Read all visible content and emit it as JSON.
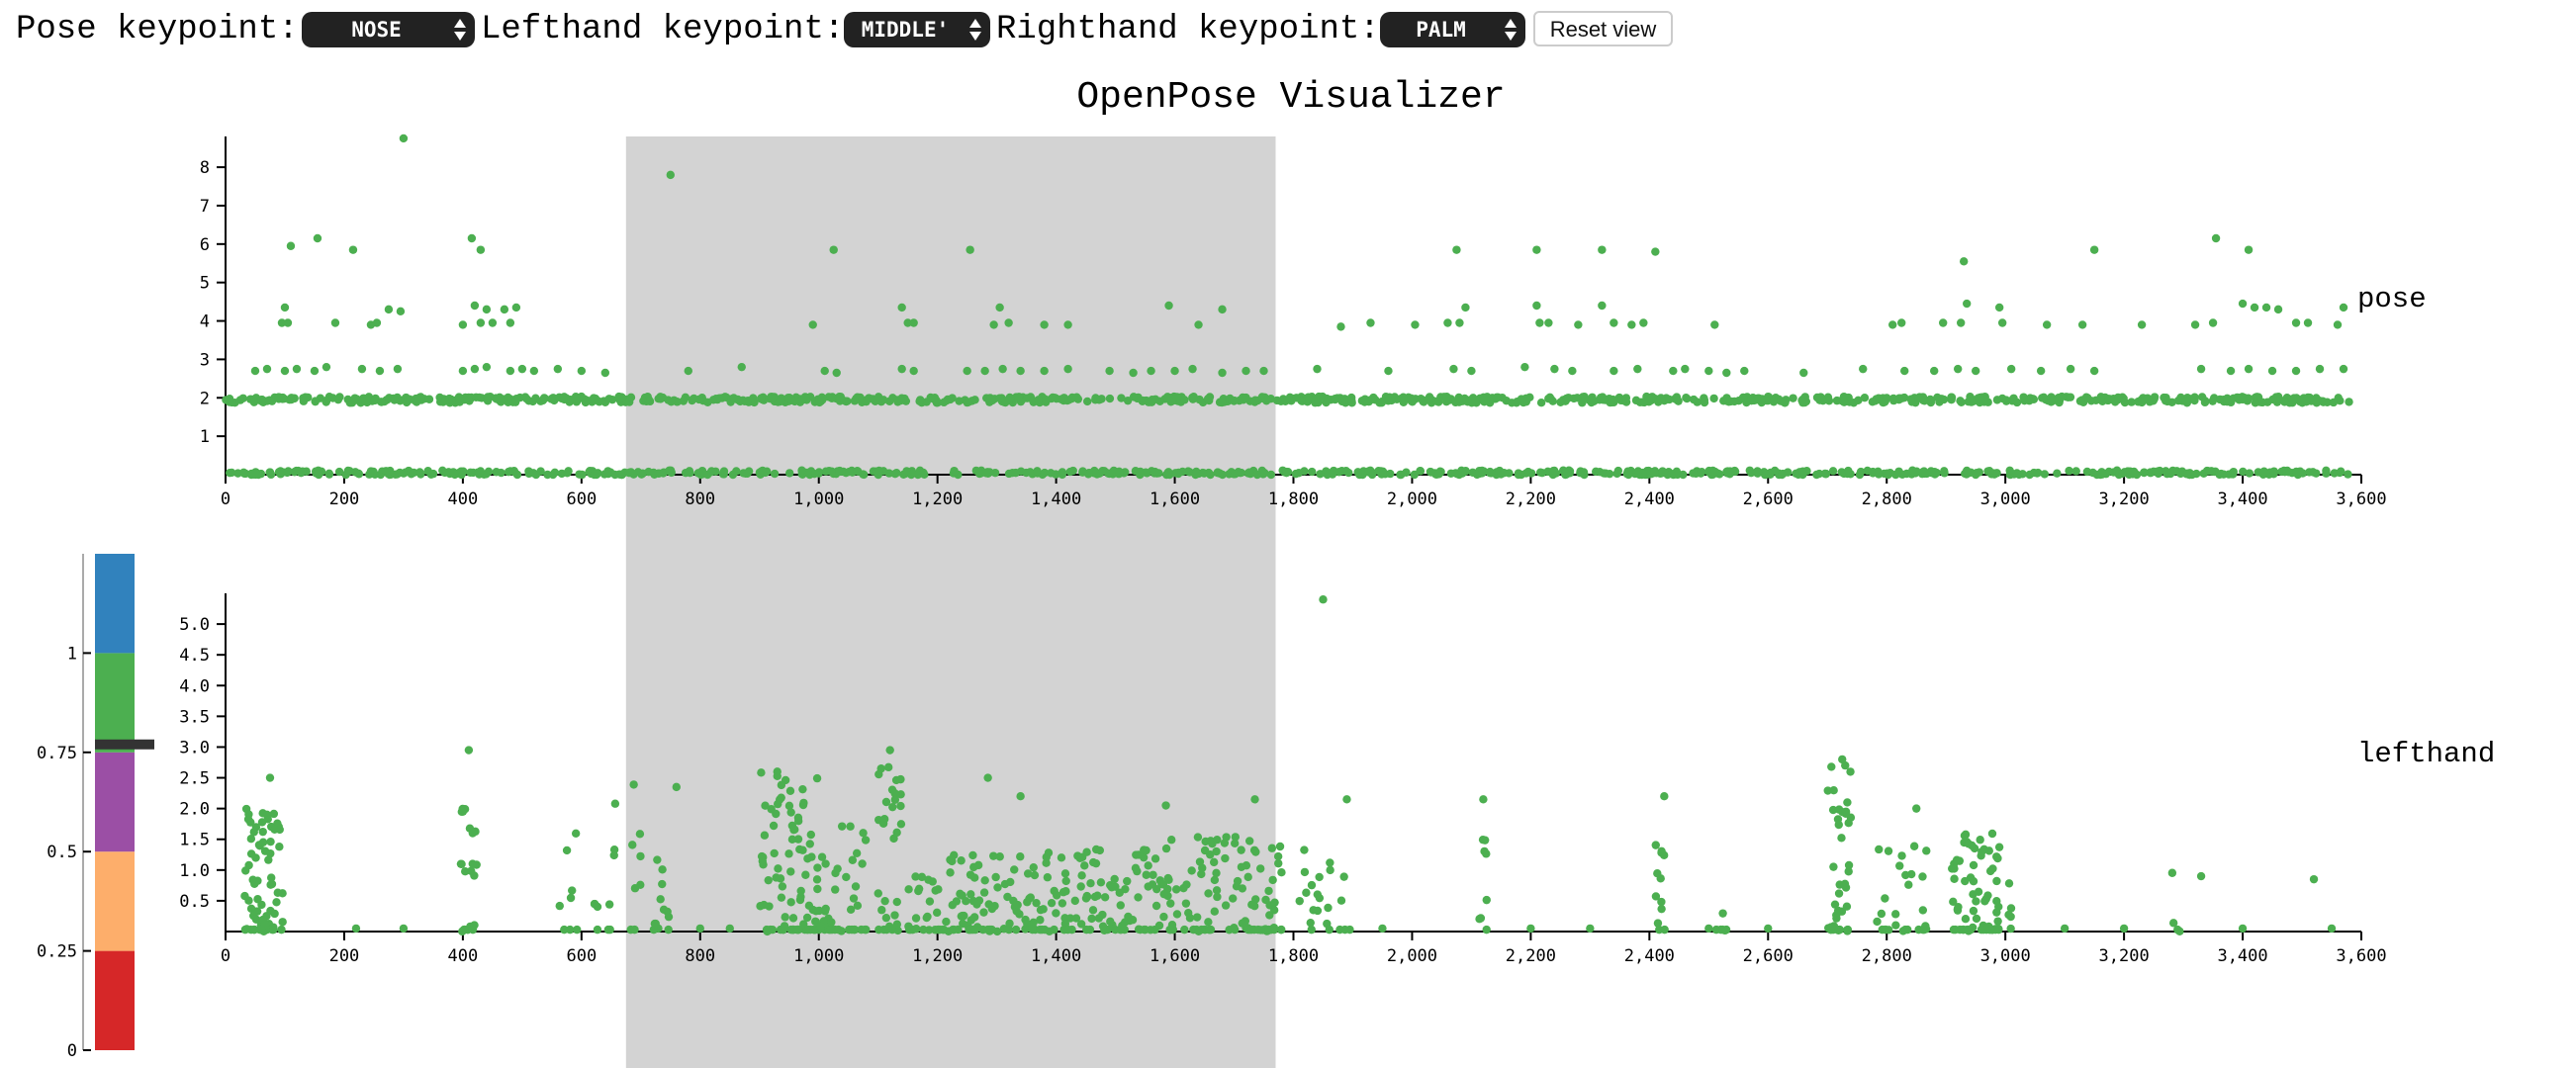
{
  "controls": {
    "pose_label": "Pose keypoint:",
    "pose_value": "NOSE",
    "lefthand_label": "Lefthand keypoint:",
    "lefthand_value": "MIDDLE'",
    "righthand_label": "Righthand keypoint:",
    "righthand_value": "PALM",
    "reset_label": "Reset view"
  },
  "colors": {
    "points": "#4caf50",
    "brush": "#d3d3d3",
    "axis": "#000000",
    "colorbar": [
      "#d62728",
      "#fdae6b",
      "#9b4fa5",
      "#4caf50",
      "#3182bd"
    ],
    "colorbar_marker": "#333333"
  },
  "chart_data": {
    "type": "scatter",
    "title": "OpenPose Visualizer",
    "brush_range": [
      675,
      1770
    ],
    "x_ticks": [
      "0",
      "200",
      "400",
      "600",
      "800",
      "1,000",
      "1,200",
      "1,400",
      "1,600",
      "1,800",
      "2,000",
      "2,200",
      "2,400",
      "2,600",
      "2,800",
      "3,000",
      "3,200",
      "3,400",
      "3,600"
    ],
    "panels": [
      {
        "name": "pose",
        "xlim": [
          0,
          3600
        ],
        "ylim": [
          0,
          8.8
        ],
        "y_ticks": [
          "1",
          "2",
          "3",
          "4",
          "5",
          "6",
          "7",
          "8"
        ],
        "bands": [
          {
            "y_center": 0.05,
            "spread": 0.06,
            "x_range": [
              0,
              3580
            ],
            "n": 700
          },
          {
            "y_center": 1.95,
            "spread": 0.08,
            "x_range": [
              0,
              3580
            ],
            "n": 900
          }
        ],
        "points": [
          [
            300,
            8.75
          ],
          [
            750,
            7.8
          ],
          [
            110,
            5.95
          ],
          [
            155,
            6.15
          ],
          [
            215,
            5.85
          ],
          [
            415,
            6.15
          ],
          [
            430,
            5.85
          ],
          [
            1025,
            5.85
          ],
          [
            1255,
            5.85
          ],
          [
            2075,
            5.85
          ],
          [
            2210,
            5.85
          ],
          [
            2320,
            5.85
          ],
          [
            2410,
            5.8
          ],
          [
            2930,
            5.55
          ],
          [
            3150,
            5.85
          ],
          [
            3355,
            6.15
          ],
          [
            3410,
            5.85
          ],
          [
            100,
            4.35
          ],
          [
            275,
            4.3
          ],
          [
            295,
            4.25
          ],
          [
            420,
            4.4
          ],
          [
            440,
            4.3
          ],
          [
            470,
            4.3
          ],
          [
            490,
            4.35
          ],
          [
            1140,
            4.35
          ],
          [
            1305,
            4.35
          ],
          [
            1590,
            4.4
          ],
          [
            1680,
            4.3
          ],
          [
            2090,
            4.35
          ],
          [
            2210,
            4.4
          ],
          [
            2320,
            4.4
          ],
          [
            2935,
            4.45
          ],
          [
            2990,
            4.35
          ],
          [
            3400,
            4.45
          ],
          [
            3420,
            4.35
          ],
          [
            3440,
            4.35
          ],
          [
            3460,
            4.3
          ],
          [
            3570,
            4.35
          ],
          [
            95,
            3.95
          ],
          [
            105,
            3.95
          ],
          [
            185,
            3.95
          ],
          [
            245,
            3.9
          ],
          [
            255,
            3.95
          ],
          [
            400,
            3.9
          ],
          [
            430,
            3.95
          ],
          [
            450,
            3.95
          ],
          [
            480,
            3.95
          ],
          [
            990,
            3.9
          ],
          [
            1150,
            3.95
          ],
          [
            1160,
            3.95
          ],
          [
            1295,
            3.9
          ],
          [
            1320,
            3.95
          ],
          [
            1380,
            3.9
          ],
          [
            1420,
            3.9
          ],
          [
            1640,
            3.9
          ],
          [
            1880,
            3.85
          ],
          [
            1930,
            3.95
          ],
          [
            2005,
            3.9
          ],
          [
            2060,
            3.95
          ],
          [
            2080,
            3.95
          ],
          [
            2215,
            3.95
          ],
          [
            2230,
            3.95
          ],
          [
            2280,
            3.9
          ],
          [
            2340,
            3.95
          ],
          [
            2370,
            3.9
          ],
          [
            2390,
            3.95
          ],
          [
            2510,
            3.9
          ],
          [
            2810,
            3.9
          ],
          [
            2825,
            3.95
          ],
          [
            2895,
            3.95
          ],
          [
            2925,
            3.95
          ],
          [
            2995,
            3.95
          ],
          [
            3070,
            3.9
          ],
          [
            3130,
            3.9
          ],
          [
            3230,
            3.9
          ],
          [
            3320,
            3.9
          ],
          [
            3350,
            3.95
          ],
          [
            3490,
            3.95
          ],
          [
            3510,
            3.95
          ],
          [
            3560,
            3.9
          ],
          [
            50,
            2.7
          ],
          [
            70,
            2.75
          ],
          [
            100,
            2.7
          ],
          [
            120,
            2.75
          ],
          [
            150,
            2.7
          ],
          [
            170,
            2.8
          ],
          [
            230,
            2.75
          ],
          [
            260,
            2.7
          ],
          [
            290,
            2.75
          ],
          [
            400,
            2.7
          ],
          [
            420,
            2.75
          ],
          [
            440,
            2.8
          ],
          [
            480,
            2.7
          ],
          [
            500,
            2.75
          ],
          [
            520,
            2.7
          ],
          [
            560,
            2.75
          ],
          [
            600,
            2.7
          ],
          [
            640,
            2.65
          ],
          [
            780,
            2.7
          ],
          [
            870,
            2.8
          ],
          [
            1010,
            2.7
          ],
          [
            1030,
            2.65
          ],
          [
            1140,
            2.75
          ],
          [
            1160,
            2.7
          ],
          [
            1250,
            2.7
          ],
          [
            1280,
            2.7
          ],
          [
            1310,
            2.75
          ],
          [
            1340,
            2.7
          ],
          [
            1380,
            2.7
          ],
          [
            1420,
            2.75
          ],
          [
            1490,
            2.7
          ],
          [
            1530,
            2.65
          ],
          [
            1560,
            2.7
          ],
          [
            1600,
            2.7
          ],
          [
            1630,
            2.75
          ],
          [
            1680,
            2.65
          ],
          [
            1720,
            2.7
          ],
          [
            1750,
            2.7
          ],
          [
            1840,
            2.75
          ],
          [
            1960,
            2.7
          ],
          [
            2070,
            2.75
          ],
          [
            2100,
            2.7
          ],
          [
            2190,
            2.8
          ],
          [
            2240,
            2.75
          ],
          [
            2270,
            2.7
          ],
          [
            2340,
            2.7
          ],
          [
            2380,
            2.75
          ],
          [
            2440,
            2.7
          ],
          [
            2460,
            2.75
          ],
          [
            2500,
            2.7
          ],
          [
            2530,
            2.65
          ],
          [
            2560,
            2.7
          ],
          [
            2660,
            2.65
          ],
          [
            2760,
            2.75
          ],
          [
            2830,
            2.7
          ],
          [
            2880,
            2.7
          ],
          [
            2920,
            2.75
          ],
          [
            2950,
            2.7
          ],
          [
            3010,
            2.75
          ],
          [
            3060,
            2.7
          ],
          [
            3110,
            2.75
          ],
          [
            3150,
            2.7
          ],
          [
            3330,
            2.75
          ],
          [
            3380,
            2.7
          ],
          [
            3410,
            2.75
          ],
          [
            3450,
            2.7
          ],
          [
            3490,
            2.7
          ],
          [
            3530,
            2.75
          ],
          [
            3570,
            2.75
          ]
        ]
      },
      {
        "name": "lefthand",
        "xlim": [
          0,
          3600
        ],
        "ylim": [
          0,
          5.5
        ],
        "y_ticks": [
          "0.5",
          "1.0",
          "1.5",
          "2.0",
          "2.5",
          "3.0",
          "3.5",
          "4.0",
          "4.5",
          "5.0"
        ],
        "clusters": [
          {
            "x_range": [
              30,
              100
            ],
            "y_max": 2.0,
            "n": 70
          },
          {
            "x_range": [
              395,
              425
            ],
            "y_max": 2.0,
            "n": 22
          },
          {
            "x_range": [
              560,
              600
            ],
            "y_max": 1.6,
            "n": 8
          },
          {
            "x_range": [
              620,
              660
            ],
            "y_max": 2.1,
            "n": 10
          },
          {
            "x_range": [
              680,
              700
            ],
            "y_max": 2.5,
            "n": 8
          },
          {
            "x_range": [
              720,
              750
            ],
            "y_max": 1.3,
            "n": 12
          },
          {
            "x_range": [
              900,
              1000
            ],
            "y_max": 2.6,
            "n": 90
          },
          {
            "x_range": [
              1000,
              1080
            ],
            "y_max": 1.9,
            "n": 40
          },
          {
            "x_range": [
              1100,
              1140
            ],
            "y_max": 2.7,
            "n": 30
          },
          {
            "x_range": [
              1150,
              1260
            ],
            "y_max": 1.3,
            "n": 55
          },
          {
            "x_range": [
              1260,
              1400
            ],
            "y_max": 1.3,
            "n": 70
          },
          {
            "x_range": [
              1400,
              1580
            ],
            "y_max": 1.4,
            "n": 90
          },
          {
            "x_range": [
              1580,
              1780
            ],
            "y_max": 1.6,
            "n": 110
          },
          {
            "x_range": [
              1810,
              1900
            ],
            "y_max": 1.4,
            "n": 22
          },
          {
            "x_range": [
              2110,
              2140
            ],
            "y_max": 2.2,
            "n": 8
          },
          {
            "x_range": [
              2410,
              2430
            ],
            "y_max": 1.5,
            "n": 12
          },
          {
            "x_range": [
              2510,
              2530
            ],
            "y_max": 1.1,
            "n": 6
          },
          {
            "x_range": [
              2700,
              2740
            ],
            "y_max": 2.7,
            "n": 40
          },
          {
            "x_range": [
              2780,
              2870
            ],
            "y_max": 1.6,
            "n": 28
          },
          {
            "x_range": [
              2910,
              2990
            ],
            "y_max": 1.6,
            "n": 70
          },
          {
            "x_range": [
              3000,
              3020
            ],
            "y_max": 0.8,
            "n": 5
          },
          {
            "x_range": [
              3280,
              3295
            ],
            "y_max": 1.0,
            "n": 4
          }
        ],
        "points": [
          [
            1850,
            5.4
          ],
          [
            410,
            2.95
          ],
          [
            1120,
            2.95
          ],
          [
            75,
            2.5
          ],
          [
            1285,
            2.5
          ],
          [
            2120,
            2.15
          ],
          [
            2425,
            2.2
          ],
          [
            3330,
            0.9
          ],
          [
            3520,
            0.85
          ],
          [
            2725,
            2.8
          ],
          [
            2730,
            2.7
          ],
          [
            760,
            2.35
          ],
          [
            930,
            2.6
          ],
          [
            1105,
            2.65
          ],
          [
            1340,
            2.2
          ],
          [
            1585,
            2.05
          ],
          [
            1735,
            2.15
          ],
          [
            1890,
            2.15
          ],
          [
            2850,
            2.0
          ],
          [
            220,
            0.05
          ],
          [
            300,
            0.05
          ],
          [
            800,
            0.05
          ],
          [
            850,
            0.05
          ],
          [
            1950,
            0.05
          ],
          [
            2200,
            0.05
          ],
          [
            2300,
            0.05
          ],
          [
            2500,
            0.05
          ],
          [
            2600,
            0.05
          ],
          [
            3100,
            0.05
          ],
          [
            3200,
            0.05
          ],
          [
            3400,
            0.05
          ],
          [
            3550,
            0.05
          ]
        ]
      }
    ],
    "colorbar": {
      "ticks": [
        "0",
        "0.25",
        "0.5",
        "0.75",
        "1"
      ],
      "domain": [
        0,
        1.25
      ],
      "marker_value": 0.77
    }
  }
}
